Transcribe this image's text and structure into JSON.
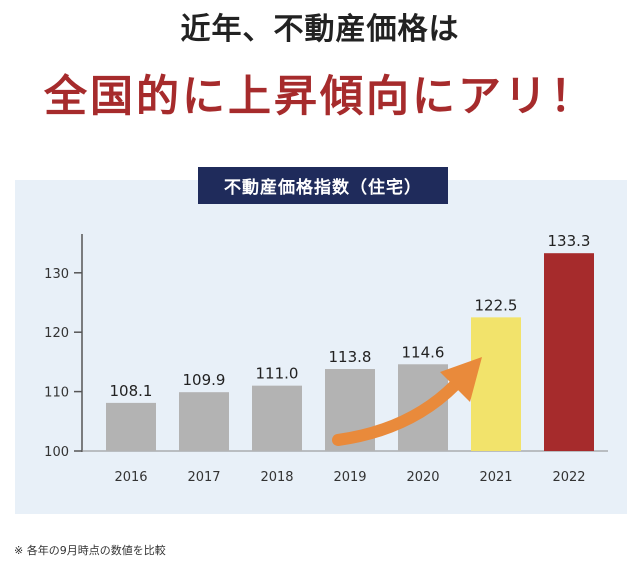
{
  "header": {
    "line1": "近年、不動産価格は",
    "line2": "全国的に上昇傾向にアリ！"
  },
  "footnote": "※ 各年の9月時点の数値を比較",
  "colors": {
    "bar_default": "#b3b3b3",
    "bar_2021": "#f2e36b",
    "bar_2022": "#a62b2c",
    "arrow": "#e98a3b",
    "title_band": "#1f2b5b",
    "headline_accent": "#a62b2c"
  },
  "chart_data": {
    "type": "bar",
    "title": "不動産価格指数（住宅）",
    "categories": [
      "2016",
      "2017",
      "2018",
      "2019",
      "2020",
      "2021",
      "2022"
    ],
    "values": [
      108.1,
      109.9,
      111.0,
      113.8,
      114.6,
      122.5,
      133.3
    ],
    "value_labels": [
      "108.1",
      "109.9",
      "111.0",
      "113.8",
      "114.6",
      "122.5",
      "133.3"
    ],
    "yticks": [
      "100",
      "110",
      "120",
      "130"
    ],
    "ylim": [
      100,
      135
    ],
    "grid": false,
    "xlabel": "",
    "ylabel": "",
    "annotation": "upward-trend-arrow"
  }
}
